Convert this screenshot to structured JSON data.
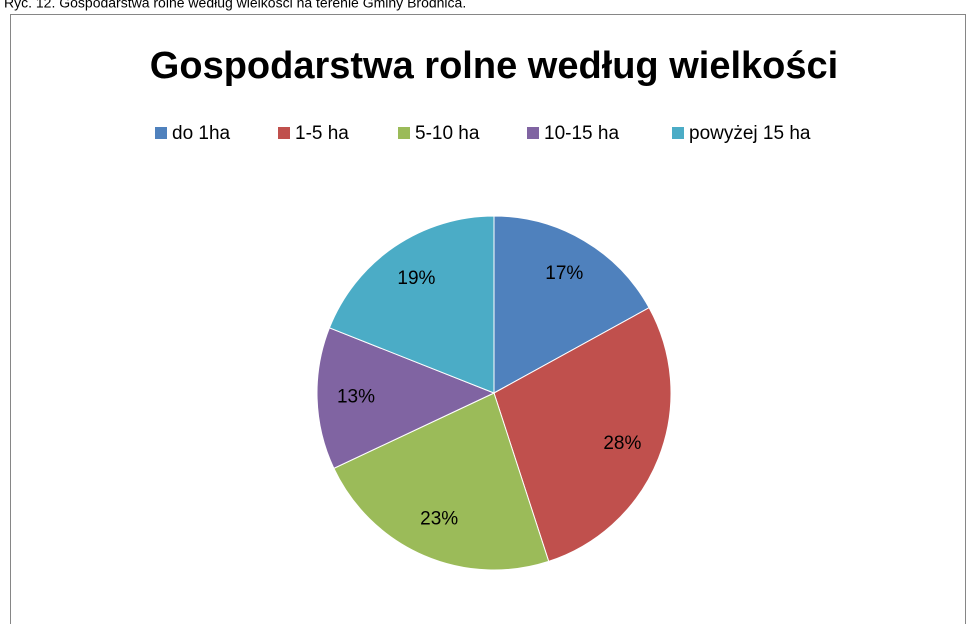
{
  "caption": "Ryc. 12. Gospodarstwa rolne według wielkości na terenie Gminy Brodnica.",
  "chart_data": {
    "type": "pie",
    "title": "Gospodarstwa rolne według wielkości",
    "categories": [
      "do 1ha",
      "1-5 ha",
      "5-10 ha",
      "10-15 ha",
      "powyżej 15 ha"
    ],
    "values": [
      17,
      28,
      23,
      13,
      19
    ],
    "value_labels": [
      "17%",
      "28%",
      "23%",
      "13%",
      "19%"
    ],
    "colors": [
      "#4f81bd",
      "#c0504d",
      "#9bbb59",
      "#8064a2",
      "#4bacc6"
    ],
    "legend": "top"
  }
}
